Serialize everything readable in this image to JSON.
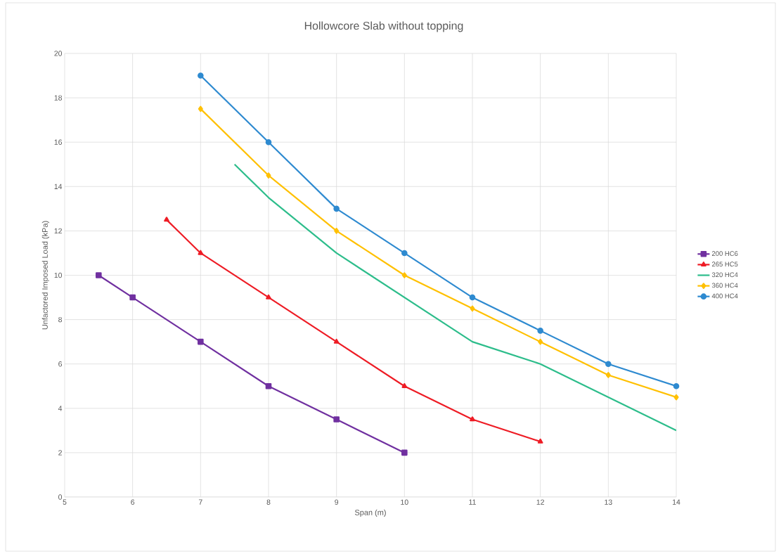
{
  "chart_data": {
    "type": "line",
    "title": "Hollowcore Slab without topping",
    "xlabel": "Span (m)",
    "ylabel": "Unfactored Imposed Load (kPa)",
    "xlim": [
      5,
      14
    ],
    "xticks": [
      5,
      6,
      7,
      8,
      9,
      10,
      11,
      12,
      13,
      14
    ],
    "ylim": [
      0,
      20
    ],
    "yticks": [
      0,
      2,
      4,
      6,
      8,
      10,
      12,
      14,
      16,
      18,
      20
    ],
    "grid": true,
    "legend": "right",
    "line_style": "solid",
    "series": [
      {
        "name": "200 HC6",
        "color": "#7030a0",
        "marker": "square",
        "x": [
          5.5,
          6,
          7,
          8,
          9,
          10
        ],
        "values": [
          10,
          9,
          7,
          5,
          3.5,
          2
        ]
      },
      {
        "name": "265 HC5",
        "color": "#ee1c25",
        "marker": "triangle",
        "x": [
          6.5,
          7,
          8,
          9,
          10,
          11,
          12
        ],
        "values": [
          12.5,
          11,
          9,
          7,
          5,
          3.5,
          2.5
        ]
      },
      {
        "name": "320 HC4",
        "color": "#2dbd8b",
        "marker": "none",
        "x": [
          7.5,
          8,
          9,
          10,
          11,
          12,
          13,
          14
        ],
        "values": [
          15,
          13.5,
          11,
          9,
          7,
          6,
          4.5,
          3
        ]
      },
      {
        "name": "360 HC4",
        "color": "#ffc000",
        "marker": "diamond",
        "x": [
          7,
          8,
          9,
          10,
          11,
          12,
          13,
          14
        ],
        "values": [
          17.5,
          14.5,
          12,
          10,
          8.5,
          7,
          5.5,
          4.5
        ]
      },
      {
        "name": "400 HC4",
        "color": "#2e8ad0",
        "marker": "circle",
        "x": [
          7,
          8,
          9,
          10,
          11,
          12,
          13,
          14
        ],
        "values": [
          19,
          16,
          13,
          11,
          9,
          7.5,
          6,
          5
        ]
      }
    ]
  }
}
